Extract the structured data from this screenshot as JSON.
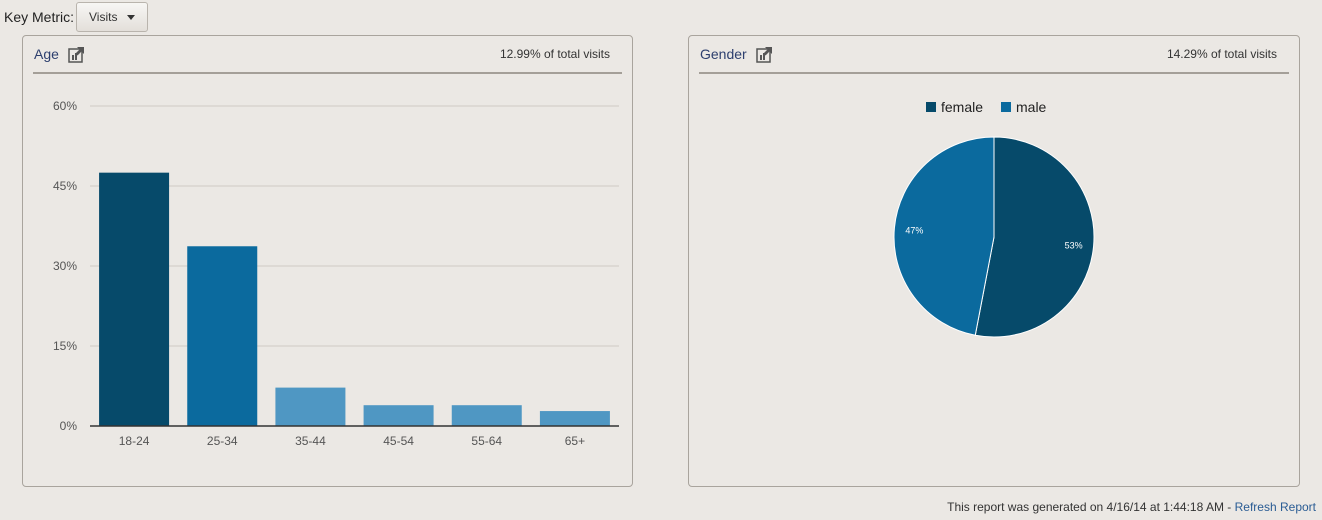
{
  "key_metric": {
    "label": "Key Metric:",
    "selected": "Visits"
  },
  "age_panel": {
    "title": "Age",
    "share": "12.99% of total visits"
  },
  "gender_panel": {
    "title": "Gender",
    "share": "14.29% of total visits"
  },
  "footer": {
    "text": "This report was generated on 4/16/14 at 1:44:18 AM - ",
    "link": "Refresh Report"
  },
  "chart_data": [
    {
      "type": "bar",
      "categories": [
        "18-24",
        "25-34",
        "35-44",
        "45-54",
        "55-64",
        "65+"
      ],
      "values": [
        47.5,
        33.7,
        7.2,
        3.9,
        3.9,
        2.8
      ],
      "colors": [
        "#064a6a",
        "#0b6a9e",
        "#4f97c3",
        "#4f97c3",
        "#4f97c3",
        "#4f97c3"
      ],
      "yticks": [
        "60%",
        "45%",
        "30%",
        "15%",
        "0%"
      ],
      "ylim": [
        0,
        60
      ],
      "grid": true
    },
    {
      "type": "pie",
      "labels": [
        "female",
        "male"
      ],
      "values": [
        53,
        47
      ],
      "slice_labels": [
        "53%",
        "47%"
      ],
      "colors": [
        "#064a6a",
        "#0b6a9e"
      ],
      "legend": "top"
    }
  ]
}
